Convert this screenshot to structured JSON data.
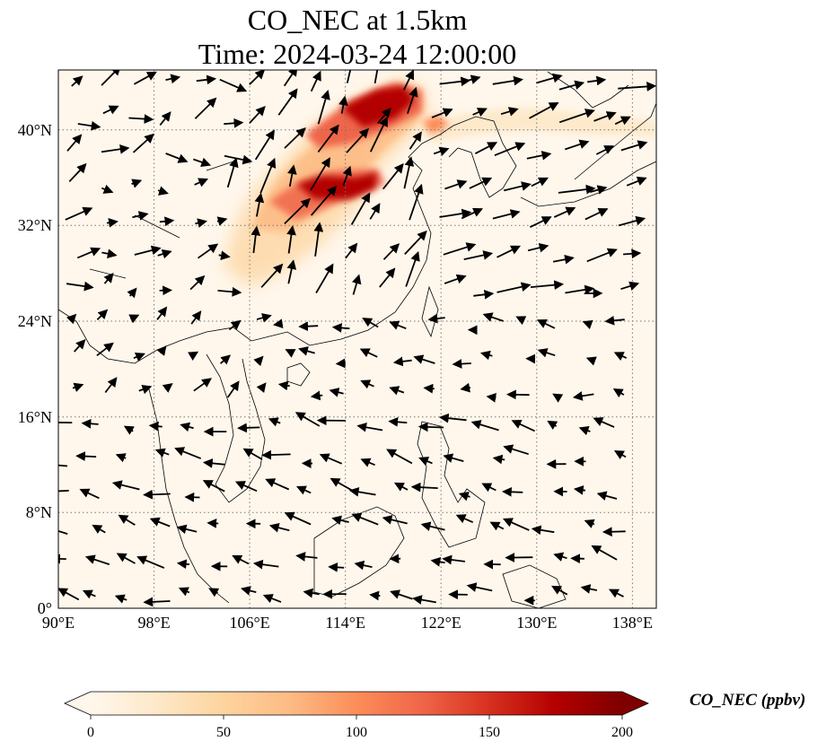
{
  "title": {
    "line1": "CO_NEC at 1.5km",
    "line2": "Time: 2024-03-24 12:00:00"
  },
  "map": {
    "lon_range": [
      90,
      140
    ],
    "lat_range": [
      0,
      45
    ],
    "lon_ticks": [
      "90°E",
      "98°E",
      "106°E",
      "114°E",
      "122°E",
      "130°E",
      "138°E"
    ],
    "lat_ticks": [
      "0°",
      "8°N",
      "16°N",
      "24°N",
      "32°N",
      "40°N"
    ],
    "gridlines": true
  },
  "colorbar": {
    "label": "CO_NEC (ppbv)",
    "ticks": [
      "0",
      "50",
      "100",
      "150",
      "200"
    ],
    "range": [
      0,
      200
    ],
    "extend": "both",
    "colormap": "OrRd",
    "colors": [
      "#fff7ec",
      "#fee8c8",
      "#fdd49e",
      "#fdbb84",
      "#fc8d59",
      "#ef6548",
      "#d7301f",
      "#b30000",
      "#7f0000"
    ]
  }
}
